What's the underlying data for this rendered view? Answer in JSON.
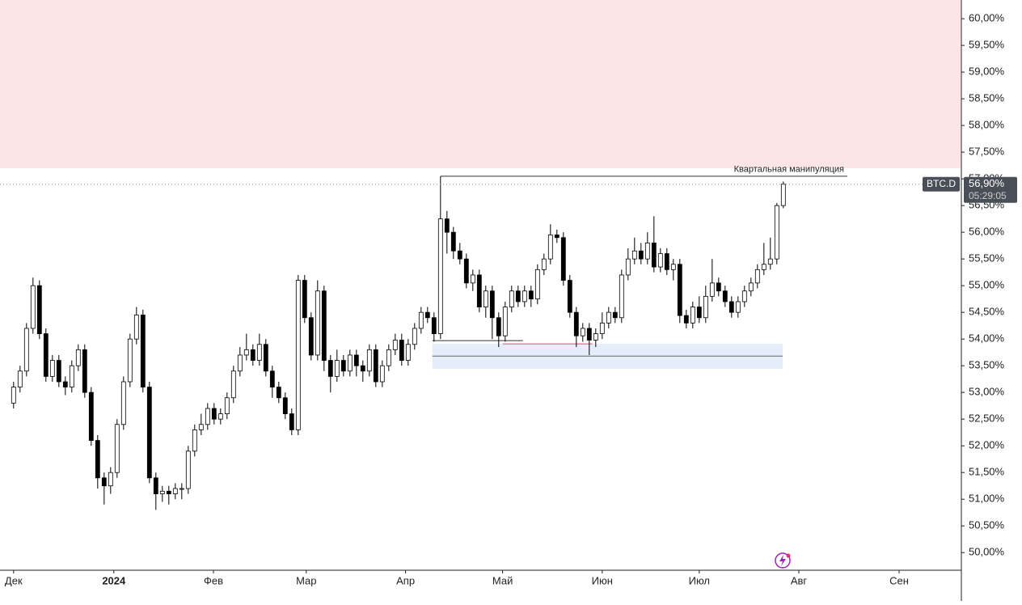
{
  "chart_data": {
    "type": "candlestick",
    "symbol": "BTC.D",
    "last_value": 56.9,
    "last_value_label": "56,90%",
    "countdown": "05:29:05",
    "up_color": "#ffffff",
    "down_color": "#000000",
    "xlim": [
      -2.1,
      146.4
    ],
    "ylim": [
      49.67,
      60.35
    ],
    "xticks": [
      {
        "value": 0,
        "label": "Дек"
      },
      {
        "value": 15.5,
        "label": "2024"
      },
      {
        "value": 30.9,
        "label": "Фев"
      },
      {
        "value": 45.25,
        "label": "Мар"
      },
      {
        "value": 60.6,
        "label": "Апр"
      },
      {
        "value": 75.6,
        "label": "Май"
      },
      {
        "value": 91,
        "label": "Июн"
      },
      {
        "value": 106,
        "label": "Июл"
      },
      {
        "value": 121.4,
        "label": "Авг"
      },
      {
        "value": 136.9,
        "label": "Сен"
      }
    ],
    "yticks": [
      {
        "value": 50,
        "label": "50,00%"
      },
      {
        "value": 50.5,
        "label": "50,50%"
      },
      {
        "value": 51,
        "label": "51,00%"
      },
      {
        "value": 51.5,
        "label": "51,50%"
      },
      {
        "value": 52,
        "label": "52,00%"
      },
      {
        "value": 52.5,
        "label": "52,50%"
      },
      {
        "value": 53,
        "label": "53,00%"
      },
      {
        "value": 53.5,
        "label": "53,50%"
      },
      {
        "value": 54,
        "label": "54,00%"
      },
      {
        "value": 54.5,
        "label": "54,50%"
      },
      {
        "value": 55,
        "label": "55,00%"
      },
      {
        "value": 55.5,
        "label": "55,50%"
      },
      {
        "value": 56,
        "label": "56,00%"
      },
      {
        "value": 56.5,
        "label": "56,50%"
      },
      {
        "value": 57,
        "label": "57,00%"
      },
      {
        "value": 57.5,
        "label": "57,50%"
      },
      {
        "value": 58,
        "label": "58,00%"
      },
      {
        "value": 58.5,
        "label": "58,50%"
      },
      {
        "value": 59,
        "label": "59,00%"
      },
      {
        "value": 59.5,
        "label": "59,50%"
      },
      {
        "value": 60,
        "label": "60,00%"
      }
    ],
    "zones": [
      {
        "xlim": [
          -2.1,
          146.4
        ],
        "ylim": [
          57.2,
          60.35
        ],
        "color": "#fde4e7"
      },
      {
        "xlim": [
          64.75,
          118.9
        ],
        "ylim": [
          53.44,
          53.91
        ],
        "color": "#e5edfb"
      }
    ],
    "lines": [
      {
        "y": 57.05,
        "x": [
          66,
          128.9
        ],
        "color": "#333333",
        "text": "Квартальная манипуляция"
      },
      {
        "y": 53.97,
        "x": [
          64.75,
          78.75
        ],
        "color": "#333333"
      },
      {
        "y": 53.91,
        "x": [
          75.6,
          89.5
        ],
        "color": "#d9536a"
      },
      {
        "y": 53.68,
        "x": [
          64.75,
          118.9
        ],
        "color": "#666666"
      }
    ],
    "open": [
      52.8,
      53.1,
      53.4,
      54.2,
      55.0,
      54.1,
      53.3,
      53.6,
      53.2,
      53.1,
      53.5,
      53.8,
      53.0,
      52.1,
      51.4,
      51.25,
      51.5,
      52.4,
      53.2,
      54.0,
      54.45,
      53.1,
      51.4,
      51.1,
      51.15,
      51.1,
      51.2,
      51.2,
      51.9,
      52.3,
      52.4,
      52.7,
      52.5,
      52.6,
      52.9,
      53.4,
      53.7,
      53.8,
      53.6,
      53.9,
      53.4,
      53.1,
      52.9,
      52.6,
      52.3,
      55.1,
      54.4,
      53.7,
      54.9,
      53.6,
      53.3,
      53.6,
      53.4,
      53.7,
      53.5,
      53.4,
      53.8,
      53.2,
      53.5,
      53.8,
      53.98,
      53.6,
      53.9,
      54.2,
      54.5,
      54.4,
      54.1,
      56.25,
      56.0,
      55.65,
      55.5,
      55.05,
      55.2,
      54.6,
      54.9,
      54.4,
      54.06,
      54.6,
      54.9,
      54.7,
      54.9,
      54.75,
      55.3,
      55.5,
      55.95,
      55.9,
      55.1,
      54.5,
      54.06,
      54.2,
      53.98,
      54.1,
      54.3,
      54.5,
      54.4,
      55.2,
      55.5,
      55.65,
      55.5,
      55.8,
      55.35,
      55.6,
      55.3,
      55.4,
      54.44,
      54.3,
      54.6,
      54.4,
      54.8,
      55.05,
      54.9,
      54.7,
      54.5,
      54.7,
      54.9,
      55.05,
      55.3,
      55.4,
      55.5,
      56.5
    ],
    "high": [
      53.2,
      53.5,
      54.3,
      55.15,
      55.1,
      54.2,
      53.7,
      53.7,
      53.3,
      53.6,
      53.9,
      53.9,
      53.1,
      52.2,
      51.5,
      51.6,
      52.5,
      53.3,
      54.1,
      54.6,
      54.55,
      53.2,
      51.5,
      51.25,
      51.25,
      51.3,
      51.3,
      52.0,
      52.4,
      52.6,
      52.8,
      52.8,
      52.7,
      53.0,
      53.5,
      53.85,
      54.1,
      53.9,
      54.1,
      54.0,
      53.5,
      53.2,
      53.0,
      52.7,
      55.2,
      55.2,
      54.5,
      55.1,
      55.0,
      53.7,
      53.8,
      53.7,
      53.8,
      53.8,
      53.6,
      53.9,
      53.9,
      53.6,
      53.9,
      54.1,
      54.1,
      54.0,
      54.3,
      54.6,
      54.6,
      54.5,
      57.05,
      56.4,
      56.1,
      55.8,
      55.6,
      55.3,
      55.3,
      55.0,
      55.0,
      54.5,
      54.7,
      55.0,
      55.0,
      55.0,
      55.0,
      55.4,
      55.6,
      56.15,
      56.05,
      56.0,
      55.2,
      54.6,
      54.3,
      54.3,
      54.2,
      54.5,
      54.6,
      54.6,
      55.3,
      55.7,
      55.9,
      55.8,
      56.0,
      56.3,
      55.7,
      55.7,
      55.5,
      55.5,
      54.55,
      54.7,
      54.8,
      55.0,
      55.5,
      55.15,
      55.0,
      54.8,
      54.8,
      55.0,
      55.15,
      55.4,
      55.8,
      55.9,
      56.55,
      56.95
    ],
    "low": [
      52.7,
      53.0,
      53.3,
      54.1,
      54.0,
      53.2,
      53.2,
      53.1,
      52.95,
      53.0,
      53.4,
      52.9,
      52.0,
      51.2,
      50.9,
      51.1,
      51.4,
      52.3,
      53.1,
      53.9,
      53.0,
      51.3,
      50.8,
      50.95,
      50.9,
      51.0,
      51.0,
      51.1,
      51.8,
      52.2,
      52.3,
      52.4,
      52.4,
      52.5,
      52.8,
      53.3,
      53.6,
      53.5,
      53.5,
      53.3,
      52.9,
      52.8,
      52.5,
      52.2,
      52.2,
      54.3,
      53.6,
      53.6,
      53.4,
      53.0,
      53.2,
      53.3,
      53.3,
      53.3,
      53.2,
      53.3,
      53.1,
      53.1,
      53.4,
      53.7,
      53.5,
      53.5,
      53.8,
      54.1,
      54.3,
      53.95,
      54.0,
      55.6,
      55.5,
      55.4,
      54.95,
      54.9,
      54.5,
      54.4,
      54.0,
      53.85,
      53.95,
      54.5,
      54.6,
      54.6,
      54.6,
      54.65,
      55.2,
      55.4,
      55.8,
      55.0,
      54.4,
      53.85,
      53.95,
      53.7,
      53.85,
      54.0,
      54.2,
      54.3,
      54.3,
      55.1,
      55.4,
      55.4,
      55.4,
      55.25,
      55.25,
      55.2,
      55.1,
      54.3,
      54.2,
      54.2,
      54.3,
      54.3,
      54.7,
      54.8,
      54.6,
      54.4,
      54.4,
      54.6,
      54.8,
      54.95,
      55.2,
      55.3,
      55.4,
      56.45
    ],
    "close": [
      53.1,
      53.4,
      54.2,
      55.0,
      54.1,
      53.3,
      53.6,
      53.2,
      53.1,
      53.5,
      53.8,
      53.0,
      52.1,
      51.4,
      51.25,
      51.5,
      52.4,
      53.2,
      54.0,
      54.45,
      53.1,
      51.4,
      51.1,
      51.15,
      51.1,
      51.2,
      51.2,
      51.9,
      52.3,
      52.4,
      52.7,
      52.5,
      52.6,
      52.9,
      53.4,
      53.7,
      53.8,
      53.6,
      53.9,
      53.4,
      53.1,
      52.9,
      52.6,
      52.3,
      55.1,
      54.4,
      53.7,
      54.9,
      53.6,
      53.3,
      53.6,
      53.4,
      53.7,
      53.5,
      53.4,
      53.8,
      53.2,
      53.5,
      53.8,
      53.98,
      53.6,
      53.9,
      54.2,
      54.5,
      54.4,
      54.1,
      56.25,
      56.0,
      55.65,
      55.5,
      55.05,
      55.2,
      54.6,
      54.9,
      54.4,
      54.06,
      54.6,
      54.9,
      54.7,
      54.9,
      54.75,
      55.3,
      55.5,
      55.95,
      55.9,
      55.1,
      54.5,
      54.06,
      54.2,
      53.98,
      54.1,
      54.3,
      54.5,
      54.4,
      55.2,
      55.5,
      55.65,
      55.5,
      55.8,
      55.35,
      55.6,
      55.3,
      55.4,
      54.44,
      54.3,
      54.6,
      54.4,
      54.8,
      55.05,
      54.9,
      54.7,
      54.5,
      54.7,
      54.9,
      55.05,
      55.3,
      55.4,
      55.5,
      56.5,
      56.9
    ]
  }
}
